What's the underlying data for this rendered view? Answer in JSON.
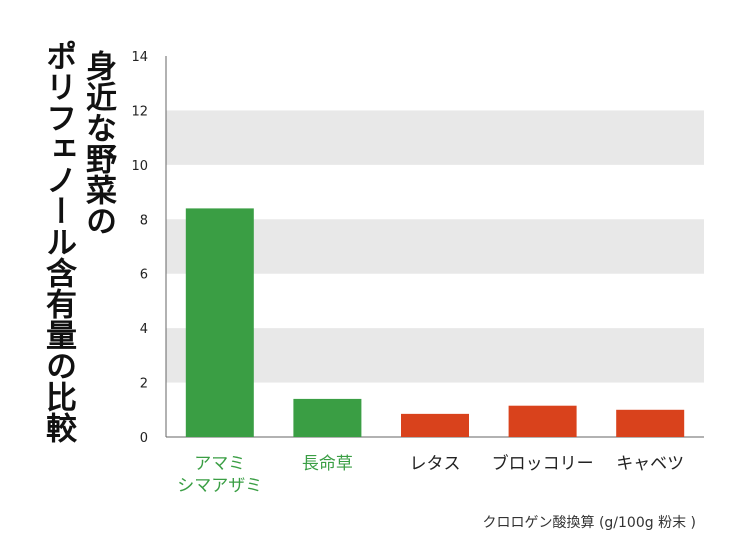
{
  "title_lines": [
    "身近な野菜の",
    "ポリフェノール含有量の比較"
  ],
  "chart_data": {
    "type": "bar",
    "categories": [
      {
        "lines": [
          "アマミ",
          "シマアザミ"
        ],
        "color": "#3a9e44"
      },
      {
        "lines": [
          "長命草"
        ],
        "color": "#3a9e44"
      },
      {
        "lines": [
          "レタス"
        ],
        "color": "#222222"
      },
      {
        "lines": [
          "ブロッコリー"
        ],
        "color": "#222222"
      },
      {
        "lines": [
          "キャベツ"
        ],
        "color": "#222222"
      }
    ],
    "values": [
      8.4,
      1.4,
      0.85,
      1.15,
      1.0
    ],
    "bar_colors": [
      "#3a9e44",
      "#3a9e44",
      "#d9421c",
      "#d9421c",
      "#d9421c"
    ],
    "yticks": [
      "0",
      "2",
      "4",
      "6",
      "8",
      "10",
      "12",
      "14"
    ],
    "ylim": [
      0,
      14
    ],
    "xlabel": "クロロゲン酸換算 (g/100g 粉末 )",
    "grid": "alternating horizontal bands",
    "band_color": "#e8e8e8",
    "axis_color": "#666666"
  }
}
